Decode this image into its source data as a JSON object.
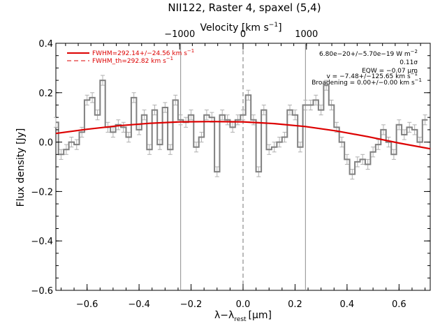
{
  "chart_data": {
    "type": "line",
    "title": "NII122, Raster 4, spaxel (5,4)",
    "xlabel": "λ−λ",
    "xlabel_sub": "rest",
    "xlabel_unit": "[μm]",
    "ylabel": "Flux density [Jy]",
    "x2label": "Velocity [km s",
    "x2label_sup": "−1",
    "x2label_end": "]",
    "xlim": [
      -0.72,
      0.72
    ],
    "ylim": [
      -0.6,
      0.4
    ],
    "x_ticks": [
      -0.6,
      -0.4,
      -0.2,
      0.0,
      0.2,
      0.4,
      0.6
    ],
    "x_tick_labels": [
      "−0.6",
      "−0.4",
      "−0.2",
      "0.0",
      "0.2",
      "0.4",
      "0.6"
    ],
    "y_ticks": [
      -0.6,
      -0.4,
      -0.2,
      0.0,
      0.2,
      0.4
    ],
    "y_tick_labels": [
      "−0.6",
      "−0.4",
      "−0.2",
      "0.0",
      "0.2",
      "0.4"
    ],
    "x2_ticks": [
      -1000,
      0,
      1000
    ],
    "x2_tick_labels": [
      "−1000",
      "0",
      "1000"
    ],
    "x2_per_x": 4101,
    "vlines_solid": [
      -0.24,
      0.24
    ],
    "vline_dashed": 0.0,
    "grid": false,
    "legend_position": "top-left",
    "colors": {
      "data": "#808080",
      "fit": "#dd0000",
      "marker_lines": "#8c8c8c",
      "axes": "#000000"
    },
    "legend": [
      {
        "label": "FWHM=292.14+/−24.56 km s",
        "sup": "−1",
        "style": "solid"
      },
      {
        "label": "FWHM_th=292.82 km s",
        "sup": "−1",
        "style": "dashed"
      }
    ],
    "annotations": [
      "6.80e−20+/−5.70e−19 W m",
      "0.11σ",
      "EQW = −0.07 μm",
      "v = −7.48+/−125.65 km s",
      "Broadening = 0.00+/−0.00 km s"
    ],
    "annotation_sups": [
      "−2",
      "",
      "",
      "−1",
      "−1"
    ],
    "series": [
      {
        "name": "spectrum",
        "style": "histogram",
        "x": [
          -0.72,
          -0.7,
          -0.68,
          -0.66,
          -0.64,
          -0.62,
          -0.6,
          -0.58,
          -0.56,
          -0.54,
          -0.52,
          -0.5,
          -0.48,
          -0.46,
          -0.44,
          -0.42,
          -0.4,
          -0.38,
          -0.36,
          -0.34,
          -0.32,
          -0.3,
          -0.28,
          -0.26,
          -0.24,
          -0.22,
          -0.2,
          -0.18,
          -0.16,
          -0.14,
          -0.12,
          -0.1,
          -0.08,
          -0.06,
          -0.04,
          -0.02,
          0.0,
          0.02,
          0.04,
          0.06,
          0.08,
          0.1,
          0.12,
          0.14,
          0.16,
          0.18,
          0.2,
          0.22,
          0.24,
          0.26,
          0.28,
          0.3,
          0.32,
          0.34,
          0.36,
          0.38,
          0.4,
          0.42,
          0.44,
          0.46,
          0.48,
          0.5,
          0.52,
          0.54,
          0.56,
          0.58,
          0.6,
          0.62,
          0.64,
          0.66,
          0.68,
          0.7
        ],
        "y": [
          0.08,
          -0.05,
          -0.03,
          0.0,
          -0.01,
          0.04,
          0.17,
          0.18,
          0.11,
          0.25,
          0.06,
          0.04,
          0.07,
          0.06,
          0.02,
          0.18,
          0.05,
          0.11,
          -0.03,
          0.13,
          -0.01,
          0.14,
          -0.03,
          0.17,
          0.09,
          0.08,
          0.11,
          -0.02,
          0.02,
          0.11,
          0.1,
          -0.12,
          0.11,
          0.09,
          0.06,
          0.09,
          0.11,
          0.19,
          0.09,
          -0.12,
          0.13,
          -0.03,
          -0.02,
          0.0,
          0.02,
          0.13,
          0.11,
          -0.02,
          0.15,
          0.15,
          0.17,
          0.13,
          0.23,
          0.15,
          0.06,
          0.0,
          -0.07,
          -0.13,
          -0.08,
          -0.07,
          -0.09,
          -0.04,
          -0.01,
          0.05,
          0.0,
          -0.05,
          0.07,
          0.03,
          0.06,
          0.05,
          0.0,
          0.09
        ],
        "yerr": 0.02
      },
      {
        "name": "fit",
        "style": "curve",
        "x": [
          -0.72,
          -0.6,
          -0.48,
          -0.36,
          -0.24,
          -0.12,
          0.0,
          0.12,
          0.24,
          0.36,
          0.48,
          0.6,
          0.72
        ],
        "y": [
          0.035,
          0.052,
          0.066,
          0.076,
          0.082,
          0.083,
          0.082,
          0.075,
          0.063,
          0.045,
          0.022,
          -0.004,
          -0.027
        ]
      }
    ]
  }
}
